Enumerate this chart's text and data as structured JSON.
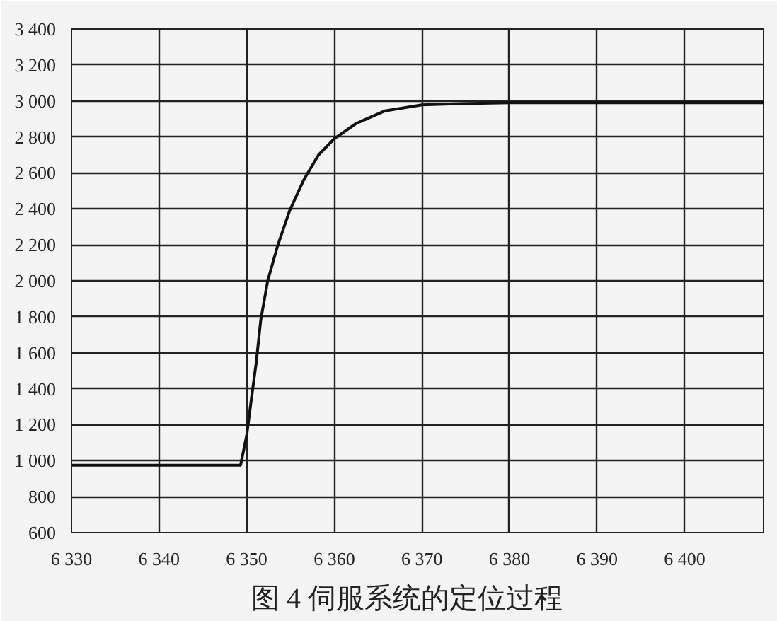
{
  "chart_data": {
    "type": "line",
    "title": "图 4    伺服系统的定位过程",
    "x": [
      6330,
      6340,
      6349.3,
      6350,
      6350.5,
      6351.1,
      6351.6,
      6352.4,
      6353.5,
      6354.9,
      6356.5,
      6358.2,
      6360,
      6362.5,
      6365.8,
      6370,
      6374.5,
      6380,
      6390,
      6409
    ],
    "series": [
      {
        "color": "#111111",
        "values": [
          975,
          975,
          975,
          1140,
          1330,
          1550,
          1780,
          2000,
          2190,
          2390,
          2560,
          2700,
          2790,
          2875,
          2945,
          2978,
          2985,
          2990,
          2990,
          2990
        ]
      }
    ],
    "xlim": [
      6330,
      6409
    ],
    "xticks": [
      {
        "value": 6330,
        "label": "6 330"
      },
      {
        "value": 6340,
        "label": "6 340"
      },
      {
        "value": 6350,
        "label": "6 350"
      },
      {
        "value": 6360,
        "label": "6 360"
      },
      {
        "value": 6370,
        "label": "6 370"
      },
      {
        "value": 6380,
        "label": "6 380"
      },
      {
        "value": 6390,
        "label": "6 390"
      },
      {
        "value": 6400,
        "label": "6 400"
      }
    ],
    "ylim": [
      600,
      3400
    ],
    "yticks": [
      600,
      800,
      {
        "value": 1000,
        "label": "1 000"
      },
      {
        "value": 1200,
        "label": "1 200"
      },
      {
        "value": 1400,
        "label": "1 400"
      },
      {
        "value": 1600,
        "label": "1 600"
      },
      {
        "value": 1800,
        "label": "1 800"
      },
      {
        "value": 2000,
        "label": "2 000"
      },
      {
        "value": 2200,
        "label": "2 200"
      },
      {
        "value": 2400,
        "label": "2 400"
      },
      {
        "value": 2600,
        "label": "2 600"
      },
      {
        "value": 2800,
        "label": "2 800"
      },
      {
        "value": 3000,
        "label": "3 000"
      },
      {
        "value": 3200,
        "label": "3 200"
      },
      {
        "value": 3400,
        "label": "3 400"
      }
    ],
    "grid": true,
    "marker": "none",
    "line_style": "solid"
  }
}
